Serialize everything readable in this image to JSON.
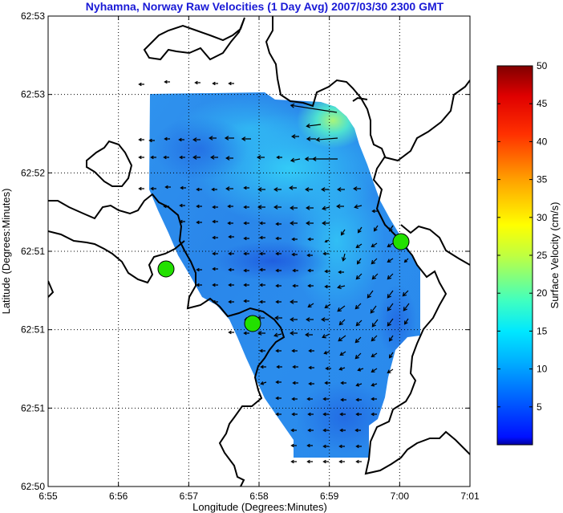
{
  "title": "Nyhamna, Norway Raw Velocities (1 Day Avg) 2007/03/30 2300 GMT",
  "axes": {
    "xlabel": "Longitude (Degrees:Minutes)",
    "ylabel": "Latitude (Degrees:Minutes)",
    "xticks": [
      "6:55",
      "6:56",
      "6:57",
      "6:58",
      "6:59",
      "7:00",
      "7:01"
    ],
    "yticks": [
      "62:53",
      "62:53",
      "62:52",
      "62:51",
      "62:51",
      "62:51",
      "62:50"
    ]
  },
  "colorbar": {
    "label": "Surface Velocity (cm/s)",
    "ticks": [
      "5",
      "10",
      "15",
      "20",
      "25",
      "30",
      "35",
      "40",
      "45",
      "50"
    ],
    "range": [
      0,
      50
    ],
    "colormap": "jet"
  },
  "colors": {
    "title": "#1a1ad6",
    "coastline": "#000000",
    "station_marker": "#22e000",
    "grid": "#000000"
  },
  "stations": [
    {
      "name": "station-west",
      "lon_min": 1.75,
      "lat_rank": 0.32
    },
    {
      "name": "station-south",
      "lon_min": 2.92,
      "lat_rank": 0.52
    },
    {
      "name": "station-east",
      "lon_min": 5.0,
      "lat_rank": 0.78
    }
  ],
  "vectors": [
    [
      420,
      140,
      -26,
      -4
    ],
    [
      400,
      155,
      -8,
      1
    ],
    [
      421,
      172,
      -12,
      1
    ],
    [
      394,
      173,
      -5,
      0
    ],
    [
      373,
      170,
      -4,
      0
    ],
    [
      421,
      198,
      -14,
      0
    ],
    [
      394,
      198,
      -6,
      0
    ],
    [
      374,
      198,
      -5,
      1
    ],
    [
      352,
      196,
      -3,
      0
    ],
    [
      330,
      196,
      -4,
      0
    ],
    [
      313,
      173,
      -5,
      0
    ],
    [
      292,
      172,
      -5,
      0
    ],
    [
      270,
      172,
      -4,
      0
    ],
    [
      250,
      174,
      -4,
      0
    ],
    [
      230,
      174,
      -3,
      0
    ],
    [
      212,
      173,
      -3,
      0
    ],
    [
      193,
      175,
      -3,
      0
    ],
    [
      180,
      174,
      -3,
      0
    ],
    [
      180,
      196,
      -3,
      0
    ],
    [
      195,
      196,
      -3,
      0
    ],
    [
      211,
      196,
      -3,
      0
    ],
    [
      231,
      196,
      -3,
      0
    ],
    [
      250,
      196,
      -4,
      0
    ],
    [
      272,
      196,
      -4,
      0
    ],
    [
      291,
      197,
      -4,
      0
    ],
    [
      180,
      235,
      -3,
      0
    ],
    [
      195,
      235,
      -3,
      0
    ],
    [
      213,
      233,
      -3,
      0
    ],
    [
      232,
      234,
      -3,
      0
    ],
    [
      252,
      236,
      -3,
      0
    ],
    [
      271,
      236,
      -3,
      0
    ],
    [
      291,
      235,
      -4,
      0
    ],
    [
      311,
      234,
      -3,
      0
    ],
    [
      331,
      236,
      -4,
      0
    ],
    [
      351,
      236,
      -4,
      0
    ],
    [
      370,
      234,
      -4,
      0
    ],
    [
      390,
      236,
      -4,
      0
    ],
    [
      410,
      236,
      -4,
      0
    ],
    [
      430,
      236,
      -4,
      0
    ],
    [
      450,
      235,
      -4,
      0
    ],
    [
      211,
      257,
      -3,
      0
    ],
    [
      231,
      256,
      -3,
      0
    ],
    [
      252,
      257,
      -3,
      0
    ],
    [
      272,
      258,
      -3,
      0
    ],
    [
      291,
      257,
      -3,
      0
    ],
    [
      311,
      258,
      -3,
      0
    ],
    [
      331,
      258,
      -4,
      0
    ],
    [
      351,
      258,
      -4,
      0
    ],
    [
      371,
      259,
      -4,
      0
    ],
    [
      391,
      259,
      -4,
      0
    ],
    [
      411,
      258,
      -4,
      1
    ],
    [
      429,
      257,
      -4,
      0
    ],
    [
      451,
      256,
      -4,
      1
    ],
    [
      471,
      263,
      -3,
      0
    ],
    [
      231,
      276,
      -3,
      0
    ],
    [
      252,
      277,
      -3,
      0
    ],
    [
      272,
      276,
      -3,
      0
    ],
    [
      291,
      278,
      -3,
      0
    ],
    [
      311,
      278,
      -3,
      0
    ],
    [
      331,
      278,
      -3,
      0
    ],
    [
      351,
      279,
      -3,
      0
    ],
    [
      371,
      278,
      -4,
      0
    ],
    [
      391,
      278,
      -4,
      0
    ],
    [
      411,
      278,
      -4,
      0
    ],
    [
      430,
      286,
      -2,
      3
    ],
    [
      451,
      283,
      -2,
      3
    ],
    [
      471,
      281,
      -2,
      3
    ],
    [
      490,
      281,
      -2,
      3
    ],
    [
      272,
      296,
      -3,
      0
    ],
    [
      292,
      295,
      -3,
      0
    ],
    [
      311,
      297,
      -3,
      0
    ],
    [
      331,
      296,
      -3,
      0
    ],
    [
      351,
      297,
      -3,
      0
    ],
    [
      371,
      298,
      -3,
      0
    ],
    [
      391,
      298,
      -3,
      0
    ],
    [
      410,
      299,
      -2,
      1
    ],
    [
      430,
      316,
      -1,
      4
    ],
    [
      451,
      304,
      -3,
      2
    ],
    [
      470,
      303,
      -3,
      2
    ],
    [
      490,
      303,
      -3,
      2
    ],
    [
      509,
      302,
      -2,
      2
    ],
    [
      272,
      316,
      -3,
      0
    ],
    [
      292,
      316,
      -3,
      0
    ],
    [
      311,
      316,
      -3,
      0
    ],
    [
      331,
      316,
      -3,
      0
    ],
    [
      351,
      316,
      -3,
      0
    ],
    [
      371,
      317,
      -3,
      0
    ],
    [
      390,
      318,
      -3,
      0
    ],
    [
      410,
      316,
      -3,
      0
    ],
    [
      450,
      322,
      -2,
      3
    ],
    [
      470,
      322,
      -3,
      3
    ],
    [
      490,
      322,
      -3,
      2
    ],
    [
      509,
      322,
      -2,
      2
    ],
    [
      252,
      336,
      -3,
      0
    ],
    [
      272,
      335,
      -3,
      0
    ],
    [
      292,
      336,
      -3,
      0
    ],
    [
      311,
      337,
      -3,
      0
    ],
    [
      331,
      336,
      -3,
      0
    ],
    [
      351,
      337,
      -3,
      0
    ],
    [
      372,
      337,
      -3,
      0
    ],
    [
      391,
      337,
      -3,
      0
    ],
    [
      412,
      338,
      -3,
      0
    ],
    [
      429,
      339,
      -3,
      0
    ],
    [
      451,
      341,
      -3,
      3
    ],
    [
      471,
      341,
      -3,
      3
    ],
    [
      490,
      341,
      -3,
      3
    ],
    [
      252,
      355,
      -3,
      0
    ],
    [
      272,
      355,
      -3,
      0
    ],
    [
      292,
      355,
      -3,
      0
    ],
    [
      311,
      355,
      -3,
      0
    ],
    [
      331,
      355,
      -3,
      0
    ],
    [
      351,
      356,
      -3,
      0
    ],
    [
      372,
      356,
      -3,
      0
    ],
    [
      391,
      356,
      -3,
      0
    ],
    [
      412,
      357,
      -3,
      0
    ],
    [
      430,
      356,
      -4,
      1
    ],
    [
      465,
      362,
      -3,
      4
    ],
    [
      490,
      362,
      -3,
      4
    ],
    [
      509,
      362,
      -3,
      3
    ],
    [
      272,
      376,
      -3,
      0
    ],
    [
      292,
      376,
      -3,
      0
    ],
    [
      311,
      375,
      -3,
      0
    ],
    [
      331,
      376,
      -3,
      0
    ],
    [
      351,
      376,
      -3,
      0
    ],
    [
      371,
      376,
      -4,
      0
    ],
    [
      391,
      378,
      -3,
      2
    ],
    [
      412,
      379,
      -3,
      2
    ],
    [
      430,
      381,
      -4,
      3
    ],
    [
      450,
      378,
      -3,
      3
    ],
    [
      469,
      381,
      -3,
      4
    ],
    [
      490,
      378,
      -3,
      4
    ],
    [
      510,
      378,
      -3,
      4
    ],
    [
      312,
      396,
      -3,
      1
    ],
    [
      330,
      396,
      -4,
      0
    ],
    [
      352,
      396,
      -4,
      0
    ],
    [
      371,
      398,
      -4,
      0
    ],
    [
      391,
      398,
      -4,
      0
    ],
    [
      410,
      398,
      -4,
      0
    ],
    [
      430,
      398,
      -3,
      3
    ],
    [
      451,
      399,
      -3,
      3
    ],
    [
      471,
      398,
      -3,
      4
    ],
    [
      490,
      397,
      -3,
      4
    ],
    [
      509,
      397,
      -2,
      3
    ],
    [
      292,
      414,
      -3,
      0
    ],
    [
      311,
      415,
      -3,
      0
    ],
    [
      331,
      415,
      -4,
      0
    ],
    [
      351,
      416,
      -4,
      1
    ],
    [
      371,
      415,
      -4,
      0
    ],
    [
      390,
      417,
      -4,
      0
    ],
    [
      411,
      416,
      -4,
      2
    ],
    [
      431,
      418,
      -4,
      3
    ],
    [
      450,
      420,
      -3,
      3
    ],
    [
      470,
      418,
      -3,
      3
    ],
    [
      490,
      418,
      -2,
      3
    ],
    [
      331,
      437,
      -3,
      0
    ],
    [
      351,
      437,
      -3,
      0
    ],
    [
      371,
      437,
      -3,
      0
    ],
    [
      392,
      437,
      -3,
      0
    ],
    [
      411,
      438,
      -3,
      1
    ],
    [
      431,
      438,
      -3,
      2
    ],
    [
      450,
      440,
      -3,
      3
    ],
    [
      470,
      440,
      -3,
      2
    ],
    [
      490,
      439,
      -2,
      3
    ],
    [
      332,
      457,
      -3,
      0
    ],
    [
      352,
      457,
      -3,
      0
    ],
    [
      372,
      457,
      -3,
      0
    ],
    [
      392,
      458,
      -3,
      0
    ],
    [
      413,
      459,
      -3,
      0
    ],
    [
      430,
      458,
      -3,
      1
    ],
    [
      453,
      459,
      -3,
      1
    ],
    [
      470,
      459,
      -3,
      2
    ],
    [
      490,
      460,
      -3,
      2
    ],
    [
      332,
      476,
      -3,
      1
    ],
    [
      351,
      476,
      -3,
      0
    ],
    [
      372,
      477,
      -3,
      0
    ],
    [
      392,
      478,
      -3,
      0
    ],
    [
      412,
      477,
      -3,
      0
    ],
    [
      432,
      477,
      -3,
      0
    ],
    [
      451,
      478,
      -3,
      1
    ],
    [
      470,
      478,
      -3,
      1
    ],
    [
      351,
      496,
      -3,
      0
    ],
    [
      371,
      497,
      -3,
      0
    ],
    [
      390,
      497,
      -3,
      0
    ],
    [
      410,
      497,
      -3,
      0
    ],
    [
      432,
      498,
      -3,
      0
    ],
    [
      451,
      498,
      -3,
      0
    ],
    [
      470,
      497,
      -3,
      0
    ],
    [
      351,
      516,
      -3,
      0
    ],
    [
      371,
      516,
      -3,
      0
    ],
    [
      391,
      516,
      -3,
      0
    ],
    [
      410,
      516,
      -3,
      0
    ],
    [
      431,
      516,
      -3,
      0
    ],
    [
      451,
      516,
      -3,
      0
    ],
    [
      470,
      516,
      -3,
      0
    ],
    [
      370,
      536,
      -3,
      0
    ],
    [
      391,
      536,
      -3,
      0
    ],
    [
      410,
      536,
      -3,
      0
    ],
    [
      431,
      536,
      -3,
      0
    ],
    [
      450,
      536,
      -3,
      0
    ],
    [
      370,
      555,
      -3,
      0
    ],
    [
      390,
      555,
      -3,
      0
    ],
    [
      410,
      556,
      -3,
      0
    ],
    [
      430,
      556,
      -3,
      0
    ],
    [
      451,
      556,
      -3,
      0
    ],
    [
      370,
      575,
      -3,
      0
    ],
    [
      390,
      575,
      -3,
      0
    ],
    [
      410,
      575,
      -3,
      0
    ],
    [
      430,
      575,
      -3,
      0
    ],
    [
      451,
      575,
      -3,
      0
    ],
    [
      180,
      105,
      -3,
      0
    ],
    [
      212,
      102,
      -3,
      0
    ],
    [
      250,
      103,
      -3,
      0
    ],
    [
      272,
      104,
      -3,
      0
    ],
    [
      292,
      104,
      -3,
      0
    ]
  ]
}
